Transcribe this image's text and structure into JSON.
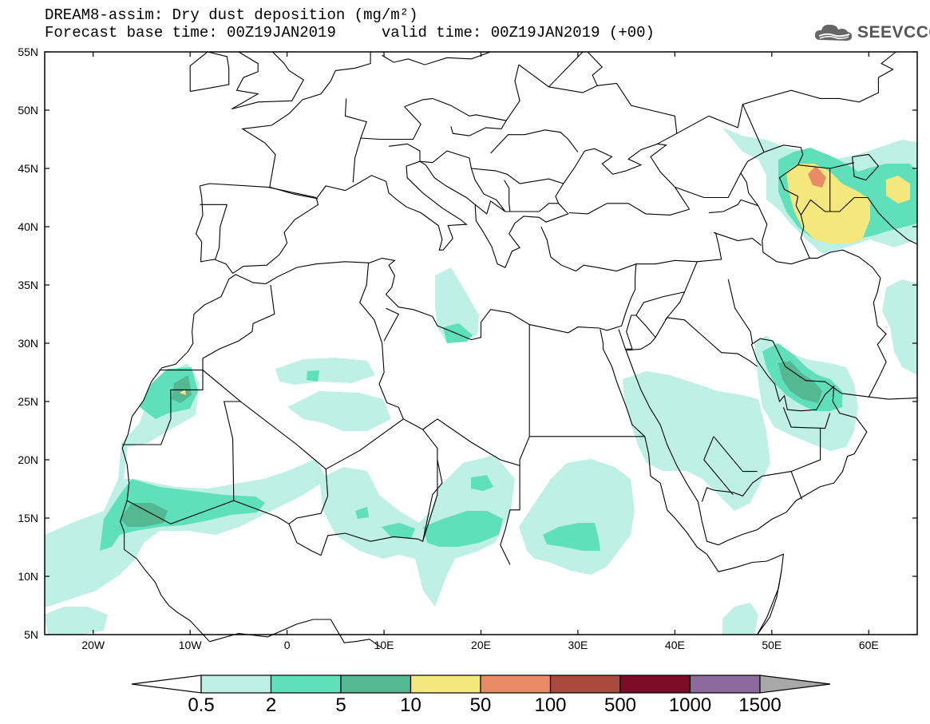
{
  "title": {
    "line1": "DREAM8-assim: Dry dust deposition (mg/m²)",
    "line2": "Forecast base time: 00Z19JAN2019     valid time: 00Z19JAN2019 (+00)"
  },
  "logo": {
    "text": "SEEVCCC",
    "icon": "cloud-icon"
  },
  "axes": {
    "lat_labels": [
      "55N",
      "50N",
      "45N",
      "40N",
      "35N",
      "30N",
      "25N",
      "20N",
      "15N",
      "10N",
      "5N"
    ],
    "lon_labels": [
      "20W",
      "10W",
      "0",
      "10E",
      "20E",
      "30E",
      "40E",
      "50E",
      "60E"
    ],
    "lon_range": [
      -25,
      65
    ],
    "lat_range": [
      5,
      55
    ]
  },
  "colorbar": {
    "labels": [
      "0.5",
      "2",
      "5",
      "10",
      "50",
      "100",
      "500",
      "1000",
      "1500"
    ],
    "colors": [
      "#bff0e6",
      "#5fe0bb",
      "#55b894",
      "#f3e77e",
      "#ea8b67",
      "#a84a3d",
      "#7b0d28",
      "#8c6a9c",
      "#a8a8a8"
    ]
  }
}
